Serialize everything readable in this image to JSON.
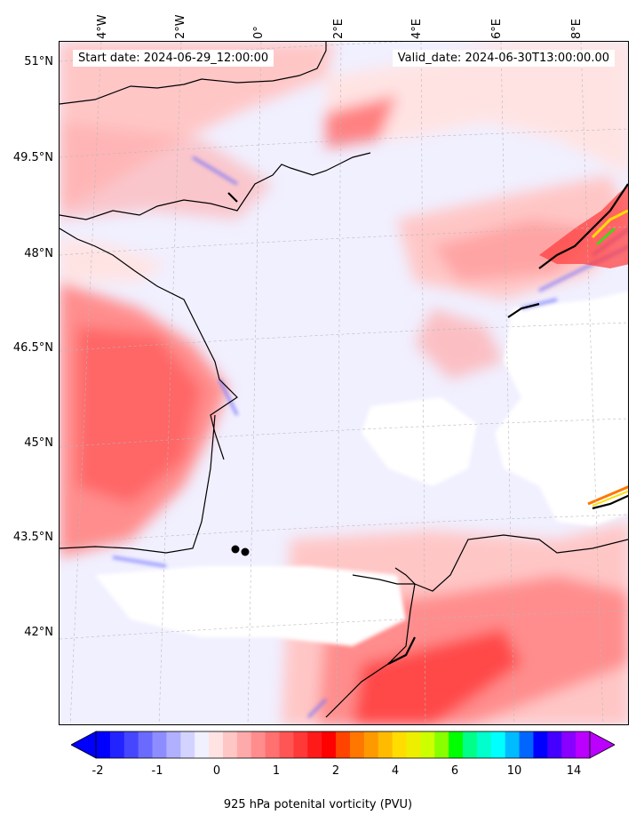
{
  "header": {
    "start_date": "Start date: 2024-06-29_12:00:00",
    "valid_date": "Valid_date: 2024-06-30T13:00:00.00"
  },
  "axes": {
    "lat_labels": [
      "51°N",
      "49.5°N",
      "48°N",
      "46.5°N",
      "45°N",
      "43.5°N",
      "42°N"
    ],
    "lon_labels": [
      "4°W",
      "2°W",
      "0°",
      "2°E",
      "4°E",
      "6°E",
      "8°E"
    ]
  },
  "colorbar": {
    "label": "925 hPa potenital vorticity (PVU)",
    "ticks": [
      "-2",
      "-1",
      "0",
      "1",
      "2",
      "4",
      "6",
      "10",
      "14"
    ],
    "colors": [
      "#0000ff",
      "#2323ff",
      "#4646ff",
      "#6a6aff",
      "#8d8dff",
      "#b0b0ff",
      "#d3d3ff",
      "#f1f0ff",
      "#ffe3e3",
      "#ffc6c6",
      "#ffaaaa",
      "#ff8d8d",
      "#ff7070",
      "#ff5555",
      "#ff3838",
      "#ff1a1a",
      "#ff0000",
      "#ff4400",
      "#ff7700",
      "#ff9900",
      "#ffbb00",
      "#ffdd00",
      "#eeee00",
      "#ccff00",
      "#88ff00",
      "#00ff00",
      "#00ff88",
      "#00ffcc",
      "#00ffff",
      "#00bbff",
      "#0066ff",
      "#0000ff",
      "#4400ff",
      "#8800ff",
      "#bb00ff"
    ]
  },
  "markers": [
    {
      "name": "station-1"
    },
    {
      "name": "station-2"
    }
  ]
}
